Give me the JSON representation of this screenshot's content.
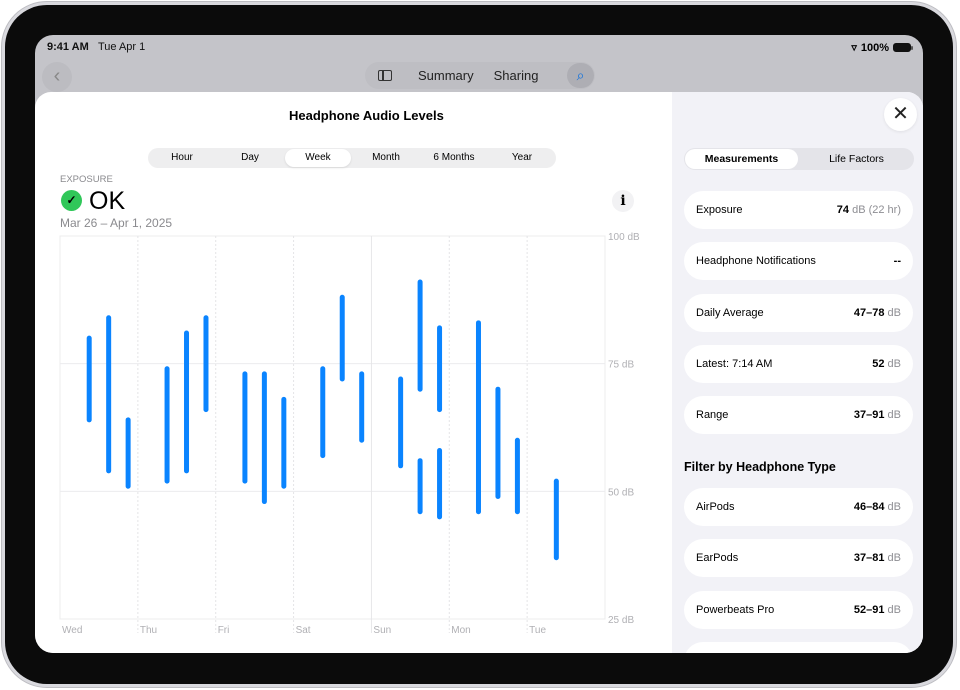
{
  "status_bar": {
    "time": "9:41 AM",
    "date": "Tue Apr 1",
    "battery": "100%"
  },
  "nav": {
    "back_icon": "chevron-left",
    "sidebar_icon": "sidebar",
    "tabs": [
      "Summary",
      "Sharing"
    ],
    "search_icon": "magnifying-glass"
  },
  "sheet": {
    "title": "Headphone Audio Levels",
    "close_icon": "xmark",
    "time_ranges": [
      "Hour",
      "Day",
      "Week",
      "Month",
      "6 Months",
      "Year"
    ],
    "selected_range": "Week",
    "exposure_label": "EXPOSURE",
    "status": "OK",
    "status_icon": "checkmark-circle",
    "date_range": "Mar 26 – Apr 1, 2025",
    "info_icon": "info"
  },
  "chart_data": {
    "type": "range-bar",
    "ylim": [
      25,
      100
    ],
    "y_ticks": [
      "100 dB",
      "75 dB",
      "50 dB",
      "25 dB"
    ],
    "y_tick_values": [
      100,
      75,
      50,
      25
    ],
    "x_ticks": [
      "Wed",
      "Thu",
      "Fri",
      "Sat",
      "Sun",
      "Mon",
      "Tue"
    ],
    "grid": true,
    "color": "#0a84ff",
    "points": [
      {
        "day": "Wed",
        "slot": 1,
        "low": 64,
        "high": 80
      },
      {
        "day": "Wed",
        "slot": 2,
        "low": 54,
        "high": 84
      },
      {
        "day": "Wed",
        "slot": 3,
        "low": 51,
        "high": 64
      },
      {
        "day": "Thu",
        "slot": 1,
        "low": 52,
        "high": 74
      },
      {
        "day": "Thu",
        "slot": 2,
        "low": 54,
        "high": 81
      },
      {
        "day": "Thu",
        "slot": 3,
        "low": 66,
        "high": 84
      },
      {
        "day": "Fri",
        "slot": 1,
        "low": 52,
        "high": 73
      },
      {
        "day": "Fri",
        "slot": 2,
        "low": 48,
        "high": 73
      },
      {
        "day": "Fri",
        "slot": 3,
        "low": 51,
        "high": 68
      },
      {
        "day": "Sat",
        "slot": 1,
        "low": 57,
        "high": 74
      },
      {
        "day": "Sat",
        "slot": 2,
        "low": 72,
        "high": 88
      },
      {
        "day": "Sat",
        "slot": 3,
        "low": 60,
        "high": 73
      },
      {
        "day": "Sun",
        "slot": 1,
        "low": 55,
        "high": 72
      },
      {
        "day": "Sun",
        "slot": 2,
        "low": 70,
        "high": 91
      },
      {
        "day": "Sun",
        "slot": 2,
        "low": 46,
        "high": 56
      },
      {
        "day": "Sun",
        "slot": 3,
        "low": 66,
        "high": 82
      },
      {
        "day": "Sun",
        "slot": 3,
        "low": 45,
        "high": 58
      },
      {
        "day": "Mon",
        "slot": 1,
        "low": 46,
        "high": 83
      },
      {
        "day": "Mon",
        "slot": 2,
        "low": 49,
        "high": 70
      },
      {
        "day": "Mon",
        "slot": 3,
        "low": 46,
        "high": 60
      },
      {
        "day": "Tue",
        "slot": 1,
        "low": 37,
        "high": 52
      }
    ]
  },
  "panel": {
    "tabs": [
      "Measurements",
      "Life Factors"
    ],
    "selected_tab": "Measurements",
    "rows": [
      {
        "label": "Exposure",
        "value": "74",
        "unit": "dB (22 hr)"
      },
      {
        "label": "Headphone Notifications",
        "value": "--",
        "unit": ""
      },
      {
        "label": "Daily Average",
        "value": "47–78",
        "unit": "dB"
      },
      {
        "label": "Latest: 7:14 AM",
        "value": "52",
        "unit": "dB"
      },
      {
        "label": "Range",
        "value": "37–91",
        "unit": "dB"
      }
    ],
    "filter_heading": "Filter by Headphone Type",
    "filters": [
      {
        "label": "AirPods",
        "value": "46–84",
        "unit": "dB"
      },
      {
        "label": "EarPods",
        "value": "37–81",
        "unit": "dB"
      },
      {
        "label": "Powerbeats Pro",
        "value": "52–91",
        "unit": "dB"
      }
    ]
  }
}
